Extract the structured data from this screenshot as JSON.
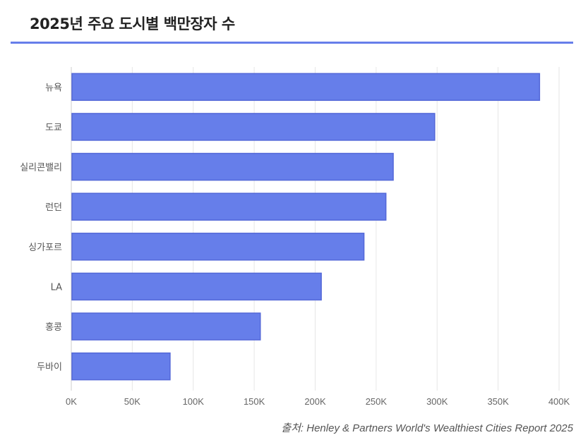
{
  "title": "2025년 주요 도시별 백만장자 수",
  "source": "출처: Henley & Partners World's Wealthiest Cities Report 2025",
  "colors": {
    "bar": "#667eea",
    "bar_border": "#5468d8",
    "accent": "#667eea"
  },
  "chart_data": {
    "type": "bar",
    "orientation": "horizontal",
    "title": "2025년 주요 도시별 백만장자 수",
    "categories": [
      "뉴욕",
      "도쿄",
      "실리콘밸리",
      "런던",
      "싱가포르",
      "LA",
      "홍콩",
      "두바이"
    ],
    "values": [
      384000,
      298000,
      264000,
      258000,
      240000,
      205000,
      155000,
      81000
    ],
    "xlim": [
      0,
      400000
    ],
    "xticks": [
      0,
      50000,
      100000,
      150000,
      200000,
      250000,
      300000,
      350000,
      400000
    ],
    "xtick_labels": [
      "0K",
      "50K",
      "100K",
      "150K",
      "200K",
      "250K",
      "300K",
      "350K",
      "400K"
    ],
    "xlabel": "",
    "ylabel": "",
    "grid": true,
    "legend": "none"
  }
}
